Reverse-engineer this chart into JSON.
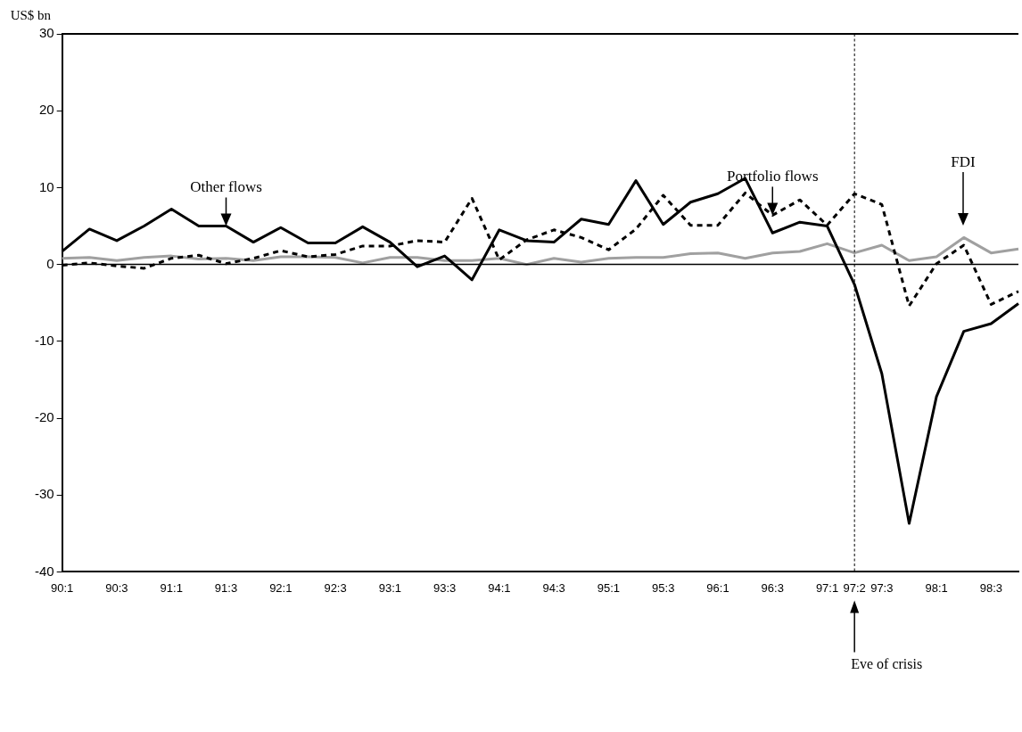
{
  "chart_data": {
    "type": "line",
    "ylabel": "US$ bn",
    "ylim": [
      -40,
      30
    ],
    "yticks": [
      -40,
      -30,
      -20,
      -10,
      0,
      10,
      20,
      30
    ],
    "categories": [
      "90:1",
      null,
      "90:3",
      null,
      "91:1",
      null,
      "91:3",
      null,
      "92:1",
      null,
      "92:3",
      null,
      "93:1",
      null,
      "93:3",
      null,
      "94:1",
      null,
      "94:3",
      null,
      "95:1",
      null,
      "95:3",
      null,
      "96:1",
      null,
      "96:3",
      null,
      "97:1",
      "97:2",
      "97:3",
      null,
      "98:1",
      null,
      "98:3",
      null
    ],
    "series": [
      {
        "color": "#000000",
        "line_style": "solid",
        "values": [
          1.7,
          4.6,
          3.1,
          5.0,
          7.2,
          5.0,
          5.0,
          2.9,
          4.8,
          2.8,
          2.8,
          4.9,
          2.9,
          -0.3,
          1.1,
          -2.0,
          4.5,
          3.1,
          2.9,
          5.9,
          5.2,
          10.9,
          5.2,
          8.1,
          9.2,
          11.2,
          4.1,
          5.5,
          5.0,
          -2.6,
          -14.2,
          -33.7,
          -17.2,
          -8.7,
          -7.7,
          -5.1
        ]
      },
      {
        "color": "#000000",
        "line_style": "dashed",
        "values": [
          -0.1,
          0.2,
          -0.2,
          -0.5,
          0.8,
          1.2,
          0.1,
          0.8,
          1.8,
          1.0,
          1.3,
          2.4,
          2.4,
          3.1,
          2.9,
          8.6,
          0.6,
          3.2,
          4.5,
          3.5,
          1.9,
          4.6,
          9.0,
          5.1,
          5.1,
          9.3,
          6.4,
          8.4,
          5.1,
          9.2,
          7.8,
          -5.4,
          0.1,
          2.5,
          -5.2,
          -3.5
        ]
      },
      {
        "color": "#a0a0a0",
        "line_style": "solid",
        "values": [
          0.8,
          0.9,
          0.5,
          0.9,
          1.1,
          0.7,
          0.8,
          0.5,
          1.0,
          1.0,
          0.9,
          0.2,
          0.9,
          0.9,
          0.5,
          0.5,
          0.8,
          0.0,
          0.8,
          0.3,
          0.8,
          0.9,
          0.9,
          1.4,
          1.5,
          0.8,
          1.5,
          1.7,
          2.7,
          1.5,
          2.5,
          0.5,
          1.0,
          3.5,
          1.5,
          2.0
        ]
      }
    ],
    "ref_lines": [
      {
        "axis": "y",
        "value": 0,
        "line_style": "solid",
        "color": "#000000"
      },
      {
        "axis": "x",
        "value": "97:2",
        "label": "Eve of crisis",
        "line_style": "dashed",
        "color": "#000000"
      }
    ],
    "annotations": [
      {
        "text": "Other flows",
        "x": "91:3",
        "y": 5.0
      },
      {
        "text": "Portfolio flows",
        "x": "96:3",
        "y": 6.4
      },
      "FDI"
    ],
    "marker": "none",
    "legend": false
  }
}
